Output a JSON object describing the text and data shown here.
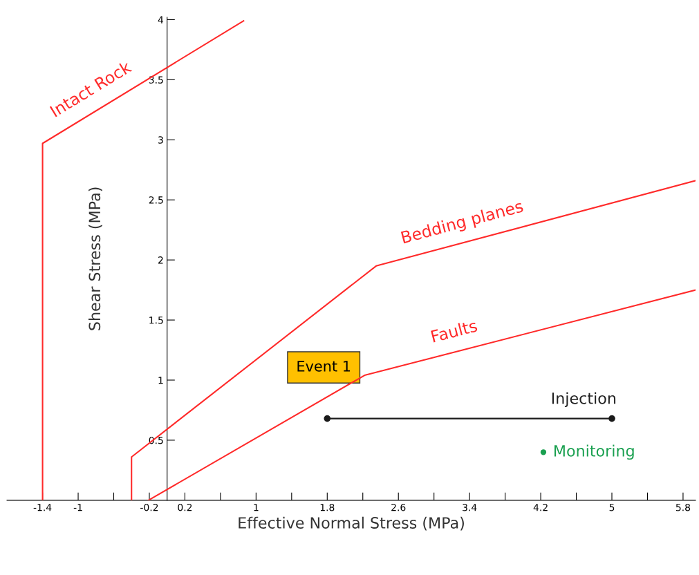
{
  "chart_data": {
    "type": "line",
    "xlabel": "Effective Normal Stress (MPa)",
    "ylabel": "Shear Stress (MPa)",
    "xlim": [
      -1.8,
      5.94
    ],
    "ylim": [
      0,
      4.02
    ],
    "xticks": [
      -1.4,
      -1,
      {
        "value": -0.6,
        "label": null
      },
      -0.2,
      0.2,
      {
        "value": 0.6,
        "label": null
      },
      1,
      {
        "value": 1.4,
        "label": null
      },
      1.8,
      {
        "value": 2.2,
        "label": null
      },
      2.6,
      {
        "value": 3.0,
        "label": null
      },
      3.4,
      {
        "value": 3.8,
        "label": null
      },
      4.2,
      {
        "value": 4.6,
        "label": null
      },
      5,
      {
        "value": 5.4,
        "label": null
      },
      5.8
    ],
    "yticks": [
      0.5,
      1,
      1.5,
      2,
      2.5,
      3,
      3.5,
      4
    ],
    "grid": false,
    "marker": "none",
    "line_style": "solid",
    "series": [
      {
        "name": "Intact Rock",
        "color": "#ff2a2a",
        "x": [
          -1.4,
          -1.4,
          0.86
        ],
        "values": [
          0,
          2.97,
          3.99
        ]
      },
      {
        "name": "Bedding planes",
        "color": "#ff2a2a",
        "x": [
          -0.4,
          -0.4,
          2.35,
          5.94
        ],
        "values": [
          0,
          0.36,
          1.95,
          2.66
        ]
      },
      {
        "name": "Faults",
        "color": "#ff2a2a",
        "x": [
          -0.21,
          2.22,
          5.94
        ],
        "values": [
          0,
          1.04,
          1.75
        ]
      },
      {
        "name": "Injection",
        "color": "#1a1a1a",
        "type": "line",
        "marker": "circle",
        "x": [
          1.8,
          5
        ],
        "values": [
          0.68,
          0.68
        ]
      },
      {
        "name": "Monitoring",
        "color": "#1aa050",
        "type": "scatter",
        "marker": "circle",
        "x": [
          4.23
        ],
        "values": [
          0.4
        ]
      }
    ],
    "annotations": [
      "Event 1"
    ]
  }
}
